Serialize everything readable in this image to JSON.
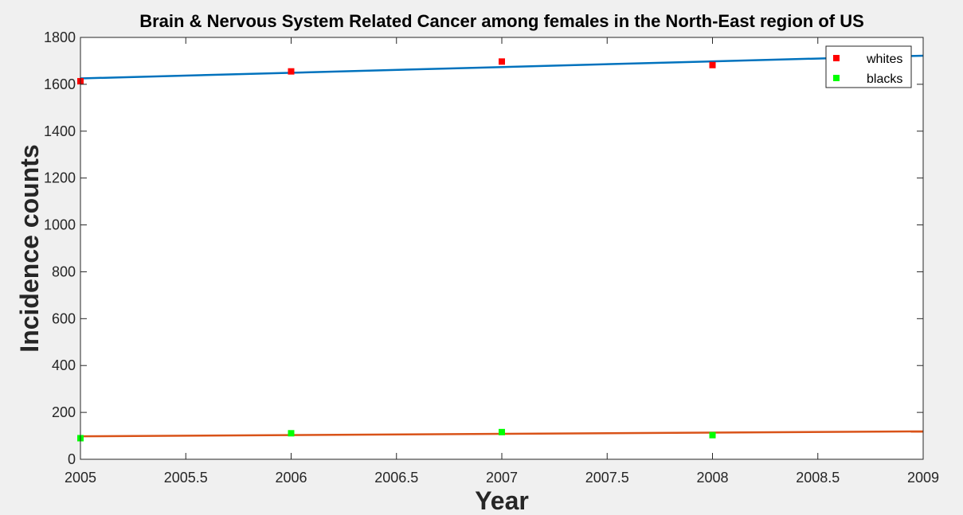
{
  "chart_data": {
    "type": "scatter",
    "title": "Brain & Nervous System Related Cancer among females in the North-East region of US",
    "xlabel": "Year",
    "ylabel": "Incidence counts",
    "xlim": [
      2005,
      2009
    ],
    "ylim": [
      0,
      1800
    ],
    "xticks": [
      "2005",
      "2005.5",
      "2006",
      "2006.5",
      "2007",
      "2007.5",
      "2008",
      "2008.5",
      "2009"
    ],
    "xtick_values": [
      2005,
      2005.5,
      2006,
      2006.5,
      2007,
      2007.5,
      2008,
      2008.5,
      2009
    ],
    "yticks": [
      "0",
      "200",
      "400",
      "600",
      "800",
      "1000",
      "1200",
      "1400",
      "1600",
      "1800"
    ],
    "ytick_values": [
      0,
      200,
      400,
      600,
      800,
      1000,
      1200,
      1400,
      1600,
      1800
    ],
    "grid": false,
    "legend_position": "top-right",
    "series": [
      {
        "name": "whites",
        "color": "#ff0000",
        "x": [
          2005,
          2006,
          2007,
          2008
        ],
        "y": [
          1613,
          1655,
          1697,
          1682
        ],
        "fit": {
          "x": [
            2005,
            2009
          ],
          "y": [
            1625,
            1722
          ],
          "color": "#0072bd"
        }
      },
      {
        "name": "blacks",
        "color": "#00ff00",
        "x": [
          2005,
          2006,
          2007,
          2008
        ],
        "y": [
          90,
          111,
          116,
          103
        ],
        "fit": {
          "x": [
            2005,
            2009
          ],
          "y": [
            98,
            119
          ],
          "color": "#d95319"
        }
      }
    ]
  }
}
